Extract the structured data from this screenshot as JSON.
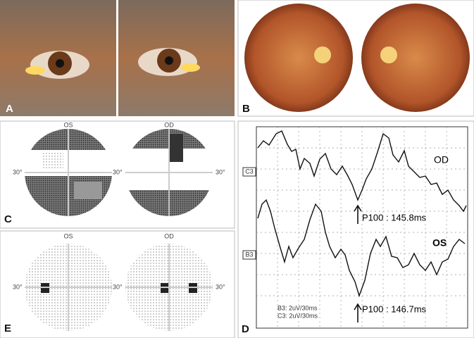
{
  "panels": {
    "A": {
      "label": "A"
    },
    "B": {
      "label": "B"
    },
    "C": {
      "label": "C",
      "eyes": [
        "OS",
        "OD"
      ],
      "angles": [
        "30°",
        "30°",
        "30°"
      ]
    },
    "E": {
      "label": "E",
      "eyes": [
        "OS",
        "OD"
      ],
      "angles": [
        "30°",
        "30°",
        "30°"
      ]
    },
    "D": {
      "label": "D",
      "channels": [
        "C3",
        "B3"
      ],
      "eyes": [
        "OD",
        "OS"
      ],
      "p100": [
        "P100 : 145.8ms",
        "P100 : 146.7ms"
      ],
      "scales": [
        "B3: 2uV/30ms",
        "C3: 2uV/30ms"
      ]
    }
  }
}
